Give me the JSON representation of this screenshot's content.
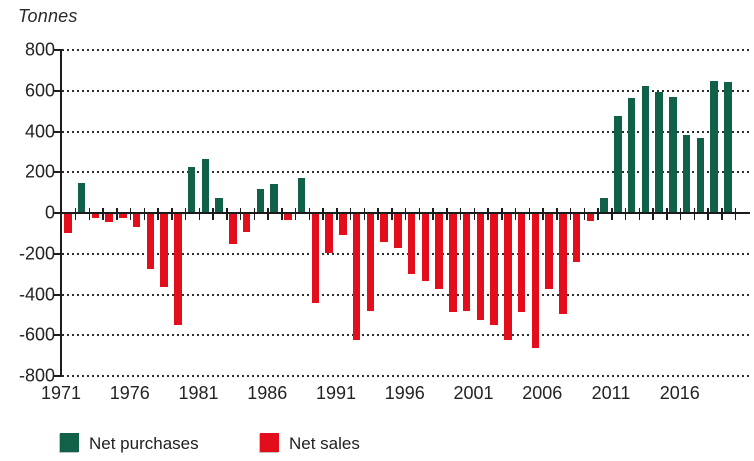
{
  "chart_data": {
    "type": "bar",
    "title": "Tonnes",
    "ylabel": "Tonnes",
    "xlabel": "",
    "ylim": [
      -800,
      800
    ],
    "ytick_step": 200,
    "yticks": [
      800,
      600,
      400,
      200,
      0,
      -200,
      -400,
      -600,
      -800
    ],
    "xticks_labeled": [
      1971,
      1976,
      1981,
      1986,
      1991,
      1996,
      2001,
      2006,
      2011,
      2016
    ],
    "grid": "dotted horizontal gridlines at every 200, solid line at 0",
    "legend_position": "bottom",
    "years": [
      1971,
      1972,
      1973,
      1974,
      1975,
      1976,
      1977,
      1978,
      1979,
      1980,
      1981,
      1982,
      1983,
      1984,
      1985,
      1986,
      1987,
      1988,
      1989,
      1990,
      1991,
      1992,
      1993,
      1994,
      1995,
      1996,
      1997,
      1998,
      1999,
      2000,
      2001,
      2002,
      2003,
      2004,
      2005,
      2006,
      2007,
      2008,
      2009,
      2010,
      2011,
      2012,
      2013,
      2014,
      2015,
      2016,
      2017,
      2018,
      2019
    ],
    "values": [
      -95,
      150,
      -20,
      -40,
      -20,
      -65,
      -270,
      -360,
      -545,
      230,
      270,
      80,
      -145,
      -90,
      125,
      145,
      -30,
      175,
      -435,
      -190,
      -105,
      -620,
      -475,
      -135,
      -165,
      -295,
      -330,
      -370,
      -480,
      -475,
      -520,
      -545,
      -620,
      -480,
      -660,
      -370,
      -490,
      -235,
      -35,
      80,
      480,
      570,
      630,
      600,
      575,
      390,
      375,
      655,
      650
    ],
    "series": [
      {
        "name": "Net purchases",
        "rule": "positive values",
        "color": "#11604a"
      },
      {
        "name": "Net sales",
        "rule": "negative values",
        "color": "#e30d1c"
      }
    ]
  },
  "legend": {
    "purchases_label": "Net purchases",
    "sales_label": "Net sales"
  },
  "colors": {
    "net_purchases_green": "#11604a",
    "net_sales_red": "#e30d1c",
    "axis_black": "#1b1b1b",
    "text": "#232323",
    "background": "#ffffff"
  }
}
